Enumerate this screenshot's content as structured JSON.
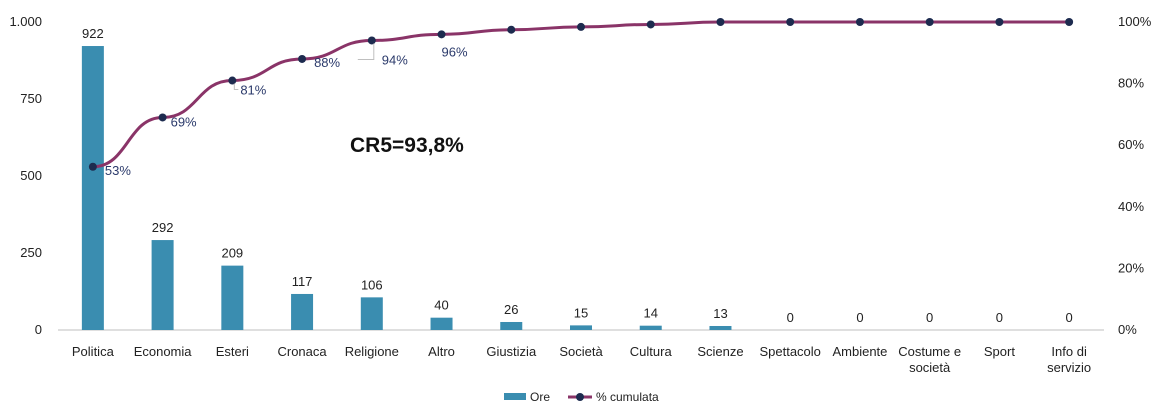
{
  "chart_data": {
    "type": "bar",
    "categories": [
      "Politica",
      "Economia",
      "Esteri",
      "Cronaca",
      "Religione",
      "Altro",
      "Giustizia",
      "Società",
      "Cultura",
      "Scienze",
      "Spettacolo",
      "Ambiente",
      "Costume e società",
      "Sport",
      "Info di servizio"
    ],
    "category_lines": [
      [
        "Politica"
      ],
      [
        "Economia"
      ],
      [
        "Esteri"
      ],
      [
        "Cronaca"
      ],
      [
        "Religione"
      ],
      [
        "Altro"
      ],
      [
        "Giustizia"
      ],
      [
        "Società"
      ],
      [
        "Cultura"
      ],
      [
        "Scienze"
      ],
      [
        "Spettacolo"
      ],
      [
        "Ambiente"
      ],
      [
        "Costume e",
        "società"
      ],
      [
        "Sport"
      ],
      [
        "Info di",
        "servizio"
      ]
    ],
    "series": [
      {
        "name": "Ore",
        "type": "bar",
        "axis": "left",
        "color": "#3a8db0",
        "values": [
          922,
          292,
          209,
          117,
          106,
          40,
          26,
          15,
          14,
          13,
          0,
          0,
          0,
          0,
          0
        ]
      },
      {
        "name": "% cumulata",
        "type": "line",
        "axis": "right",
        "color": "#8a3468",
        "marker_color": "#1d2b4f",
        "values": [
          53,
          69,
          81,
          88,
          94,
          96,
          97.5,
          98.4,
          99.2,
          100,
          100,
          100,
          100,
          100,
          100
        ],
        "labels": [
          "53%",
          "69%",
          "81%",
          "88%",
          "94%",
          "96%",
          "",
          "",
          "",
          "",
          "",
          "",
          "",
          "",
          ""
        ]
      }
    ],
    "bar_labels": [
      "922",
      "292",
      "209",
      "117",
      "106",
      "40",
      "26",
      "15",
      "14",
      "13",
      "0",
      "0",
      "0",
      "0",
      "0"
    ],
    "y_left": {
      "ylim": [
        0,
        1000
      ],
      "ticks": [
        0,
        250,
        500,
        750,
        1000
      ],
      "tick_labels": [
        "0",
        "250",
        "500",
        "750",
        "1.000"
      ]
    },
    "y_right": {
      "ylim": [
        0,
        100
      ],
      "ticks": [
        0,
        20,
        40,
        60,
        80,
        100
      ],
      "tick_labels": [
        "0%",
        "20%",
        "40%",
        "60%",
        "80%",
        "100%"
      ]
    },
    "annotation": "CR5=93,8%",
    "title": "",
    "xlabel": "",
    "ylabel": "",
    "grid": false,
    "legend": {
      "placement": "bottom",
      "entries": [
        "Ore",
        "% cumulata"
      ]
    }
  }
}
